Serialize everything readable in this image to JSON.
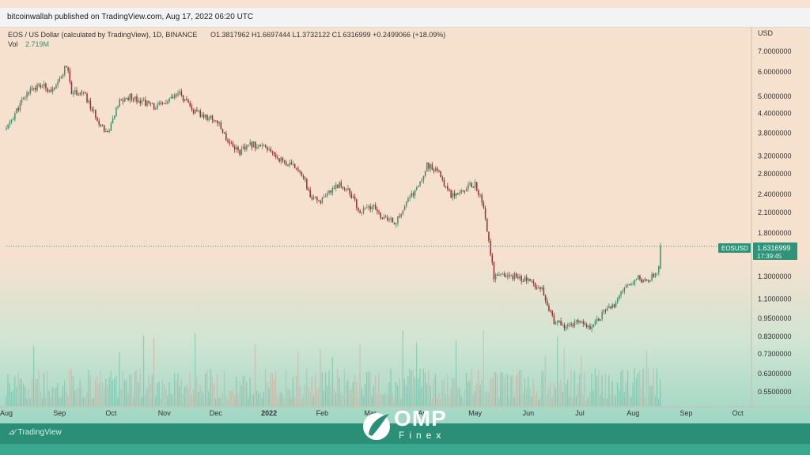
{
  "header": {
    "publisher": "bitcoinwallah published on TradingView.com, Aug 17, 2022 06:20 UTC"
  },
  "legend": {
    "symbol": "EOS / US Dollar (calculated by TradingView), 1D, BINANCE",
    "ohlc": "O1.3817962  H1.6697444  L1.3732122  C1.6316999  +0.2499066 (+18.09%)",
    "vol_label": "Vol",
    "vol_value": "2.719M"
  },
  "price_tag": {
    "symbol": "EOSUSD",
    "value": "1.6316999",
    "countdown": "17:39:45"
  },
  "footer": {
    "tradingview": "TradingView",
    "brand_top": "OMP",
    "brand_bottom": "Finex"
  },
  "colors": {
    "up": "#3f8f6b",
    "down": "#9a2f2f",
    "volume": "#5fb9a0",
    "tag": "#2e9479"
  },
  "chart_data": {
    "type": "candlestick",
    "title": "EOS / US Dollar (calculated by TradingView), 1D, BINANCE",
    "yunit": "USD",
    "yscale": "log",
    "ylim": [
      0.5,
      8.2
    ],
    "yticks": [
      7.0,
      6.0,
      5.0,
      4.4,
      3.8,
      3.2,
      2.8,
      2.4,
      2.1,
      1.8,
      1.6316999,
      1.3,
      1.1,
      0.95,
      0.83,
      0.73,
      0.63,
      0.55
    ],
    "ytick_labels": [
      "7.0000000",
      "6.0000000",
      "5.0000000",
      "4.4000000",
      "3.8000000",
      "3.2000000",
      "2.8000000",
      "2.4000000",
      "2.1000000",
      "1.8000000",
      "",
      "1.3000000",
      "1.1000000",
      "0.9500000",
      "0.8300000",
      "0.7300000",
      "0.6300000",
      "0.5500000"
    ],
    "xtick_labels": [
      "Aug",
      "Sep",
      "Oct",
      "Nov",
      "Dec",
      "2022",
      "Feb",
      "Mar",
      "Apr",
      "May",
      "Jun",
      "Jul",
      "Aug",
      "Sep",
      "Oct"
    ],
    "xtick_dates": [
      "2021-08-01",
      "2021-09-01",
      "2021-10-01",
      "2021-11-01",
      "2021-12-01",
      "2022-01-01",
      "2022-02-01",
      "2022-03-01",
      "2022-04-01",
      "2022-05-01",
      "2022-06-01",
      "2022-07-01",
      "2022-08-01",
      "2022-09-01",
      "2022-10-01"
    ],
    "last_price": 1.6316999,
    "last_ohlc": {
      "date": "2022-08-17",
      "open": 1.3817962,
      "high": 1.6697444,
      "low": 1.3732122,
      "close": 1.6316999
    },
    "close_series": [
      {
        "date": "2021-08-01",
        "close": 3.9
      },
      {
        "date": "2021-08-08",
        "close": 4.6
      },
      {
        "date": "2021-08-15",
        "close": 5.3
      },
      {
        "date": "2021-08-22",
        "close": 5.4
      },
      {
        "date": "2021-08-29",
        "close": 5.2
      },
      {
        "date": "2021-09-05",
        "close": 6.3
      },
      {
        "date": "2021-09-08",
        "close": 5.2
      },
      {
        "date": "2021-09-15",
        "close": 5.1
      },
      {
        "date": "2021-09-22",
        "close": 4.3
      },
      {
        "date": "2021-09-29",
        "close": 3.8
      },
      {
        "date": "2021-10-06",
        "close": 4.8
      },
      {
        "date": "2021-10-13",
        "close": 5.0
      },
      {
        "date": "2021-10-20",
        "close": 4.8
      },
      {
        "date": "2021-10-27",
        "close": 4.6
      },
      {
        "date": "2021-11-03",
        "close": 4.8
      },
      {
        "date": "2021-11-10",
        "close": 5.1
      },
      {
        "date": "2021-11-17",
        "close": 4.5
      },
      {
        "date": "2021-11-24",
        "close": 4.3
      },
      {
        "date": "2021-12-01",
        "close": 4.2
      },
      {
        "date": "2021-12-08",
        "close": 3.6
      },
      {
        "date": "2021-12-15",
        "close": 3.3
      },
      {
        "date": "2021-12-22",
        "close": 3.5
      },
      {
        "date": "2021-12-29",
        "close": 3.4
      },
      {
        "date": "2022-01-05",
        "close": 3.2
      },
      {
        "date": "2022-01-12",
        "close": 3.0
      },
      {
        "date": "2022-01-19",
        "close": 2.9
      },
      {
        "date": "2022-01-26",
        "close": 2.3
      },
      {
        "date": "2022-02-02",
        "close": 2.3
      },
      {
        "date": "2022-02-09",
        "close": 2.6
      },
      {
        "date": "2022-02-16",
        "close": 2.5
      },
      {
        "date": "2022-02-23",
        "close": 2.1
      },
      {
        "date": "2022-03-02",
        "close": 2.2
      },
      {
        "date": "2022-03-09",
        "close": 2.0
      },
      {
        "date": "2022-03-16",
        "close": 1.95
      },
      {
        "date": "2022-03-23",
        "close": 2.3
      },
      {
        "date": "2022-03-30",
        "close": 2.6
      },
      {
        "date": "2022-04-03",
        "close": 3.0
      },
      {
        "date": "2022-04-10",
        "close": 2.8
      },
      {
        "date": "2022-04-17",
        "close": 2.4
      },
      {
        "date": "2022-04-24",
        "close": 2.5
      },
      {
        "date": "2022-05-01",
        "close": 2.6
      },
      {
        "date": "2022-05-05",
        "close": 2.3
      },
      {
        "date": "2022-05-09",
        "close": 1.7
      },
      {
        "date": "2022-05-12",
        "close": 1.3
      },
      {
        "date": "2022-05-19",
        "close": 1.3
      },
      {
        "date": "2022-05-26",
        "close": 1.3
      },
      {
        "date": "2022-06-02",
        "close": 1.25
      },
      {
        "date": "2022-06-09",
        "close": 1.2
      },
      {
        "date": "2022-06-16",
        "close": 0.92
      },
      {
        "date": "2022-06-23",
        "close": 0.9
      },
      {
        "date": "2022-06-30",
        "close": 0.92
      },
      {
        "date": "2022-07-07",
        "close": 0.9
      },
      {
        "date": "2022-07-14",
        "close": 0.98
      },
      {
        "date": "2022-07-21",
        "close": 1.05
      },
      {
        "date": "2022-07-28",
        "close": 1.2
      },
      {
        "date": "2022-08-04",
        "close": 1.3
      },
      {
        "date": "2022-08-08",
        "close": 1.25
      },
      {
        "date": "2022-08-12",
        "close": 1.3
      },
      {
        "date": "2022-08-16",
        "close": 1.38
      },
      {
        "date": "2022-08-17",
        "close": 1.6316999
      }
    ]
  }
}
